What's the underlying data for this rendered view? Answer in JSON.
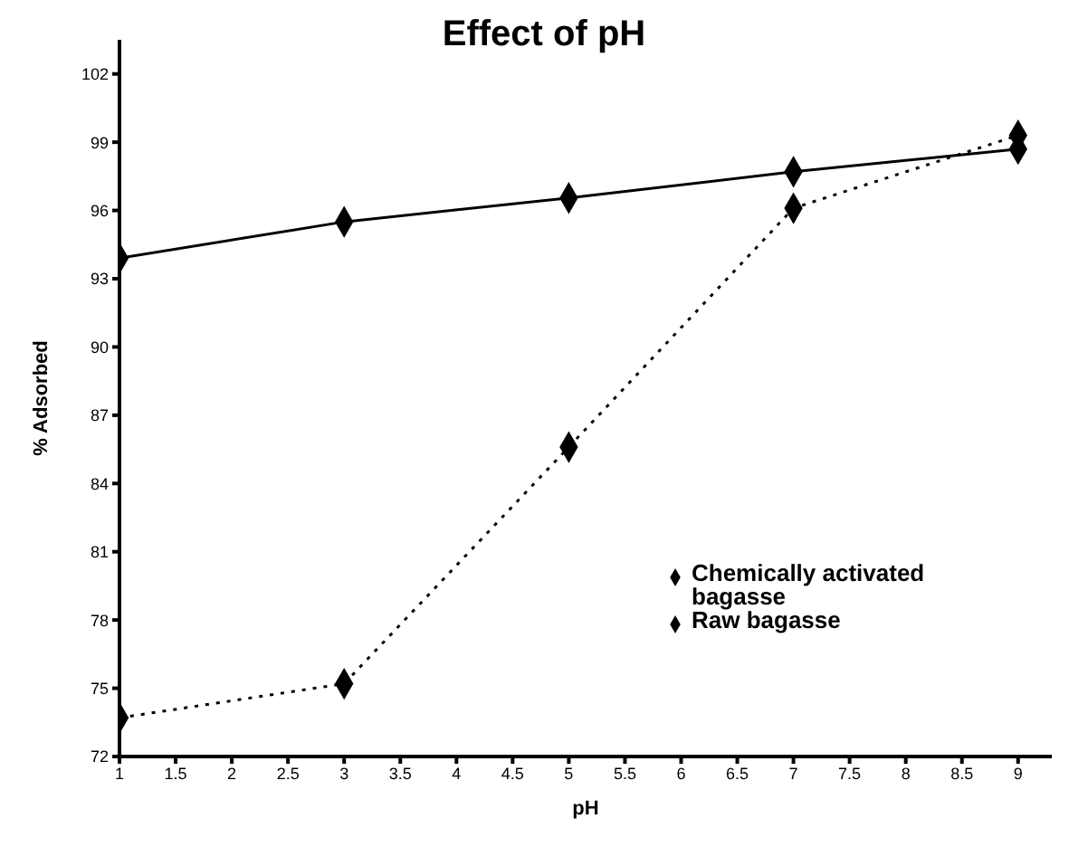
{
  "chart_data": {
    "type": "line",
    "title": "Effect of pH",
    "xlabel": "pH",
    "ylabel": "% Adsorbed",
    "x": [
      1,
      3,
      5,
      7,
      9
    ],
    "series": [
      {
        "name": "Chemically activated bagasse",
        "color": "#000000",
        "line_style": "solid",
        "values": [
          93.9,
          95.5,
          96.55,
          97.7,
          98.7
        ]
      },
      {
        "name": "Raw bagasse",
        "color": "#000000",
        "line_style": "dotted",
        "values": [
          73.7,
          75.2,
          85.6,
          96.1,
          99.3
        ]
      }
    ],
    "xlim": [
      1,
      9.3
    ],
    "xticks": [
      1,
      1.5,
      2,
      2.5,
      3,
      3.5,
      4,
      4.5,
      5,
      5.5,
      6,
      6.5,
      7,
      7.5,
      8,
      8.5,
      9
    ],
    "ylim": [
      72,
      103.5
    ],
    "yticks": [
      72,
      75,
      78,
      81,
      84,
      87,
      90,
      93,
      96,
      99,
      102
    ],
    "grid": false,
    "legend": "right",
    "marker": "diamond"
  }
}
